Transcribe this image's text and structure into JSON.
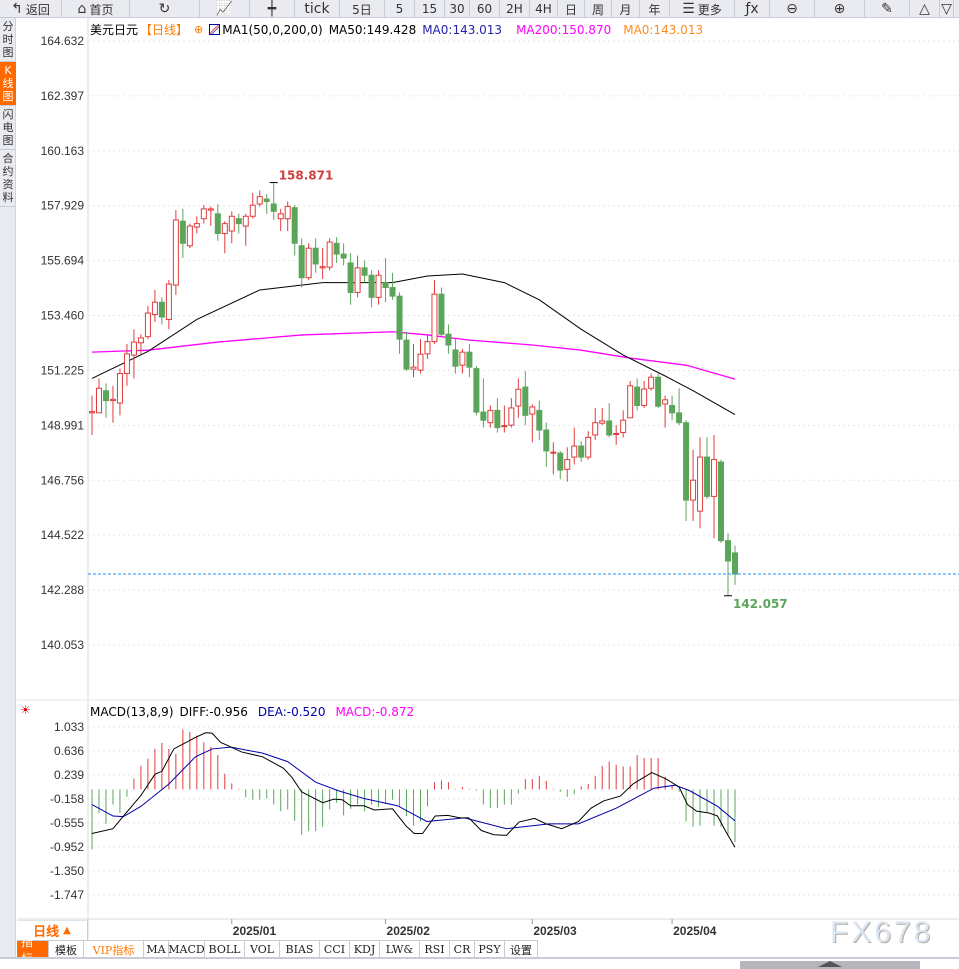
{
  "toolbar": [
    {
      "label": "返回",
      "icon": "back-arrow-icon",
      "w": 62
    },
    {
      "label": "首页",
      "icon": "home-icon",
      "w": 68
    },
    {
      "label": "",
      "icon": "refresh-icon",
      "w": 70
    },
    {
      "label": "",
      "icon": "line-chart-icon",
      "w": 50
    },
    {
      "label": "",
      "icon": "candlestick-icon",
      "w": 45
    },
    {
      "label": "tick",
      "icon": "",
      "w": 45,
      "big": true
    },
    {
      "label": "5日",
      "icon": "",
      "w": 45
    },
    {
      "label": "5",
      "icon": "",
      "w": 30
    },
    {
      "label": "15",
      "icon": "",
      "w": 30
    },
    {
      "label": "30",
      "icon": "",
      "w": 25
    },
    {
      "label": "60",
      "icon": "",
      "w": 30
    },
    {
      "label": "2H",
      "icon": "",
      "w": 30
    },
    {
      "label": "4H",
      "icon": "",
      "w": 28
    },
    {
      "label": "日",
      "icon": "",
      "w": 27
    },
    {
      "label": "周",
      "icon": "",
      "w": 27
    },
    {
      "label": "月",
      "icon": "",
      "w": 28
    },
    {
      "label": "年",
      "icon": "",
      "w": 30
    },
    {
      "label": "更多",
      "icon": "menu-icon",
      "w": 65
    },
    {
      "label": "",
      "icon": "fx-icon",
      "w": 35
    },
    {
      "label": "",
      "icon": "zoom-out-icon",
      "w": 45
    },
    {
      "label": "",
      "icon": "zoom-in-icon",
      "w": 50
    },
    {
      "label": "",
      "icon": "pen-icon",
      "w": 45
    },
    {
      "label": "",
      "icon": "triangle-up-icon",
      "w": 30
    },
    {
      "label": "",
      "icon": "triangle-down-icon",
      "w": 14
    }
  ],
  "side_tabs": [
    {
      "label": "分时图",
      "active": false
    },
    {
      "label": "K线图",
      "active": true
    },
    {
      "label": "闪电图",
      "active": false
    },
    {
      "label": "合约资料",
      "active": false
    }
  ],
  "legend": {
    "symbol": "美元日元",
    "period": "【日线】",
    "ma_name": "MA1(50,0,200,0)",
    "ma50": "MA50:149.428",
    "ma0": "MA0:143.013",
    "ma200": "MA200:150.870",
    "ma0b": "MA0:143.013"
  },
  "macd_legend": {
    "name": "MACD(13,8,9)",
    "diff": "DIFF:-0.956",
    "dea": "DEA:-0.520",
    "macd": "MACD:-0.872"
  },
  "colors": {
    "up": "#e03c3c",
    "down": "#5ba55b",
    "ma50": "#000000",
    "ma200": "#ff00ff",
    "dea": "#0000aa",
    "accent": "#ff6a00",
    "price_line": "#1e90ff"
  },
  "chart_data": [
    {
      "type": "candlestick",
      "y_ticks": [
        "164.632",
        "162.397",
        "160.163",
        "157.929",
        "155.694",
        "153.460",
        "151.225",
        "148.991",
        "146.756",
        "144.522",
        "142.288",
        "140.053"
      ],
      "ylim": [
        140.053,
        164.632
      ],
      "high_label": "158.871",
      "low_label": "142.057",
      "last_price": 142.94,
      "x_ticks": [
        {
          "label": "2025/01",
          "index": 20
        },
        {
          "label": "2025/02",
          "index": 42
        },
        {
          "label": "2025/03",
          "index": 63
        },
        {
          "label": "2025/04",
          "index": 83
        }
      ],
      "ohlc": [
        [
          149.5,
          150.2,
          148.6,
          149.55
        ],
        [
          149.5,
          150.9,
          149.5,
          150.5
        ],
        [
          150.4,
          150.7,
          149.3,
          150.0
        ],
        [
          150.0,
          150.6,
          149.1,
          150.05
        ],
        [
          149.9,
          151.3,
          149.4,
          151.1
        ],
        [
          151.1,
          152.3,
          150.6,
          151.9
        ],
        [
          151.85,
          152.9,
          150.9,
          152.38
        ],
        [
          152.35,
          152.7,
          151.9,
          152.55
        ],
        [
          152.6,
          153.85,
          152.5,
          153.56
        ],
        [
          153.5,
          154.5,
          153.2,
          154.0
        ],
        [
          154.0,
          154.2,
          153.1,
          153.4
        ],
        [
          153.3,
          154.9,
          152.9,
          154.74
        ],
        [
          154.7,
          157.75,
          154.3,
          157.35
        ],
        [
          157.3,
          157.8,
          155.8,
          156.4
        ],
        [
          156.3,
          157.2,
          156.2,
          157.1
        ],
        [
          157.06,
          157.5,
          156.8,
          157.2
        ],
        [
          157.4,
          157.95,
          157.2,
          157.8
        ],
        [
          157.75,
          157.9,
          157.1,
          157.8
        ],
        [
          157.6,
          158.0,
          156.5,
          156.8
        ],
        [
          156.8,
          157.3,
          156.0,
          157.2
        ],
        [
          156.9,
          157.7,
          156.4,
          157.5
        ],
        [
          157.4,
          157.6,
          156.8,
          157.2
        ],
        [
          157.1,
          157.6,
          156.3,
          157.5
        ],
        [
          157.5,
          158.45,
          157.4,
          157.95
        ],
        [
          158.0,
          158.55,
          157.9,
          158.3
        ],
        [
          158.2,
          158.4,
          157.6,
          158.1
        ],
        [
          158.0,
          158.871,
          157.35,
          157.7
        ],
        [
          157.4,
          157.8,
          156.9,
          157.6
        ],
        [
          157.4,
          158.1,
          156.9,
          157.9
        ],
        [
          157.85,
          157.95,
          155.9,
          156.4
        ],
        [
          156.3,
          156.6,
          154.6,
          155.0
        ],
        [
          155.0,
          156.4,
          154.9,
          156.2
        ],
        [
          156.2,
          156.6,
          155.2,
          155.56
        ],
        [
          155.4,
          156.2,
          154.95,
          155.45
        ],
        [
          155.43,
          156.6,
          155.3,
          156.45
        ],
        [
          156.4,
          156.65,
          155.6,
          155.96
        ],
        [
          155.96,
          156.4,
          155.5,
          155.8
        ],
        [
          155.6,
          156.0,
          153.9,
          154.4
        ],
        [
          154.4,
          155.9,
          154.2,
          155.4
        ],
        [
          155.4,
          155.7,
          154.8,
          155.1
        ],
        [
          155.1,
          155.3,
          153.8,
          154.2
        ],
        [
          154.2,
          155.3,
          153.9,
          155.1
        ],
        [
          154.8,
          155.8,
          154.0,
          154.6
        ],
        [
          154.6,
          155.2,
          154.1,
          154.25
        ],
        [
          154.25,
          154.4,
          151.9,
          152.5
        ],
        [
          152.46,
          152.8,
          151.2,
          151.28
        ],
        [
          151.28,
          152.3,
          150.95,
          151.36
        ],
        [
          151.24,
          152.5,
          151.1,
          151.89
        ],
        [
          151.9,
          152.7,
          151.7,
          152.4
        ],
        [
          152.4,
          154.9,
          152.3,
          154.33
        ],
        [
          154.33,
          154.6,
          152.6,
          152.7
        ],
        [
          152.7,
          153.1,
          151.9,
          152.26
        ],
        [
          152.06,
          152.5,
          151.1,
          151.4
        ],
        [
          151.44,
          152.1,
          151.1,
          151.97
        ],
        [
          151.97,
          152.3,
          150.95,
          151.36
        ],
        [
          151.3,
          151.4,
          149.4,
          149.53
        ],
        [
          149.53,
          150.9,
          148.9,
          149.2
        ],
        [
          149.1,
          149.8,
          148.9,
          149.6
        ],
        [
          149.6,
          150.1,
          148.7,
          148.9
        ],
        [
          148.94,
          149.8,
          148.7,
          148.98
        ],
        [
          149.0,
          150.1,
          148.9,
          149.7
        ],
        [
          149.78,
          150.9,
          149.3,
          150.46
        ],
        [
          150.55,
          151.2,
          149.0,
          149.4
        ],
        [
          149.45,
          149.85,
          148.3,
          149.74
        ],
        [
          149.6,
          150.0,
          148.4,
          148.8
        ],
        [
          148.8,
          149.1,
          147.3,
          147.95
        ],
        [
          147.88,
          148.3,
          147.0,
          147.9
        ],
        [
          147.86,
          147.95,
          146.8,
          147.17
        ],
        [
          147.2,
          148.1,
          146.7,
          147.6
        ],
        [
          147.7,
          148.9,
          147.4,
          148.15
        ],
        [
          148.15,
          148.35,
          147.5,
          147.7
        ],
        [
          147.7,
          148.75,
          147.6,
          148.5
        ],
        [
          148.6,
          149.7,
          148.4,
          149.1
        ],
        [
          149.08,
          149.7,
          149.0,
          149.17
        ],
        [
          149.17,
          149.9,
          148.5,
          148.6
        ],
        [
          148.64,
          149.0,
          148.2,
          148.66
        ],
        [
          148.7,
          149.6,
          148.5,
          149.2
        ],
        [
          149.3,
          150.8,
          149.3,
          150.6
        ],
        [
          150.55,
          150.9,
          149.6,
          149.8
        ],
        [
          149.8,
          150.8,
          149.7,
          150.47
        ],
        [
          150.5,
          151.1,
          150.4,
          150.95
        ],
        [
          150.95,
          151.1,
          149.7,
          149.77
        ],
        [
          149.86,
          150.2,
          148.9,
          150.03
        ],
        [
          149.8,
          150.2,
          149.2,
          149.5
        ],
        [
          149.5,
          150.5,
          149.0,
          149.1
        ],
        [
          149.1,
          149.2,
          145.1,
          145.95
        ],
        [
          145.95,
          148.0,
          145.1,
          146.76
        ],
        [
          145.5,
          148.5,
          144.8,
          147.7
        ],
        [
          147.7,
          148.5,
          146.0,
          146.1
        ],
        [
          146.1,
          148.6,
          144.4,
          147.6
        ],
        [
          147.5,
          147.6,
          144.2,
          144.3
        ],
        [
          144.3,
          144.6,
          142.057,
          143.47
        ],
        [
          143.8,
          144.1,
          142.5,
          142.94
        ]
      ],
      "ma50": [
        [
          0,
          150.9
        ],
        [
          8,
          152.0
        ],
        [
          15,
          153.3
        ],
        [
          24,
          154.5
        ],
        [
          33,
          154.8
        ],
        [
          43,
          154.8
        ],
        [
          48,
          155.07
        ],
        [
          53,
          155.15
        ],
        [
          59,
          154.8
        ],
        [
          64,
          154.1
        ],
        [
          70,
          152.9
        ],
        [
          76,
          151.85
        ],
        [
          82,
          151.0
        ],
        [
          86,
          150.4
        ],
        [
          92,
          149.43
        ]
      ],
      "ma200": [
        [
          0,
          151.97
        ],
        [
          8,
          152.05
        ],
        [
          18,
          152.38
        ],
        [
          30,
          152.67
        ],
        [
          43,
          152.8
        ],
        [
          48,
          152.67
        ],
        [
          54,
          152.46
        ],
        [
          63,
          152.26
        ],
        [
          70,
          152.05
        ],
        [
          77,
          151.73
        ],
        [
          85,
          151.44
        ],
        [
          92,
          150.87
        ]
      ]
    },
    {
      "type": "macd",
      "y_ticks": [
        "1.033",
        "0.636",
        "0.239",
        "-0.158",
        "-0.555",
        "-0.952",
        "-1.350",
        "-1.747"
      ],
      "ylim": [
        -1.747,
        1.033
      ],
      "hist": [
        -0.99,
        -0.39,
        -0.57,
        -0.25,
        -0.39,
        -0.12,
        0.18,
        0.39,
        0.51,
        0.67,
        0.77,
        0.67,
        0.59,
        0.99,
        0.95,
        0.89,
        0.78,
        0.7,
        0.57,
        0.26,
        0.1,
        0.01,
        -0.13,
        -0.17,
        -0.17,
        -0.15,
        -0.25,
        -0.36,
        -0.33,
        -0.52,
        -0.75,
        -0.69,
        -0.69,
        -0.62,
        -0.33,
        -0.22,
        -0.43,
        -0.32,
        -0.25,
        -0.36,
        -0.25,
        -0.29,
        -0.24,
        -0.17,
        -0.28,
        -0.44,
        -0.6,
        -0.53,
        -0.28,
        0.12,
        0.15,
        0.12,
        0.01,
        0.04,
        0.01,
        -0.02,
        -0.25,
        -0.31,
        -0.31,
        -0.25,
        -0.25,
        -0.07,
        0.17,
        0.17,
        0.22,
        0.14,
        0.01,
        -0.04,
        -0.12,
        -0.08,
        0.05,
        0.09,
        0.22,
        0.39,
        0.46,
        0.41,
        0.38,
        0.38,
        0.57,
        0.52,
        0.52,
        0.52,
        0.21,
        0.06,
        -0.04,
        -0.53,
        -0.62,
        -0.6,
        -0.39,
        -0.6,
        -0.62,
        -0.75,
        -0.872
      ],
      "diff": [
        [
          0,
          -0.73
        ],
        [
          3,
          -0.65
        ],
        [
          4.5,
          -0.44
        ],
        [
          7,
          -0.1
        ],
        [
          9,
          0.25
        ],
        [
          10,
          0.3
        ],
        [
          11.7,
          0.67
        ],
        [
          14.8,
          0.86
        ],
        [
          16.3,
          0.94
        ],
        [
          17.2,
          0.93
        ],
        [
          18.4,
          0.78
        ],
        [
          21.4,
          0.62
        ],
        [
          24.4,
          0.54
        ],
        [
          27.4,
          0.35
        ],
        [
          28.6,
          0.2
        ],
        [
          30,
          -0.04
        ],
        [
          33,
          -0.22
        ],
        [
          34.6,
          -0.16
        ],
        [
          35.8,
          -0.17
        ],
        [
          37,
          -0.27
        ],
        [
          38.9,
          -0.27
        ],
        [
          40.4,
          -0.34
        ],
        [
          43,
          -0.32
        ],
        [
          44.9,
          -0.6
        ],
        [
          46.1,
          -0.73
        ],
        [
          47.3,
          -0.73
        ],
        [
          49.1,
          -0.44
        ],
        [
          50.9,
          -0.43
        ],
        [
          52.7,
          -0.47
        ],
        [
          53.9,
          -0.47
        ],
        [
          55.7,
          -0.68
        ],
        [
          57.5,
          -0.75
        ],
        [
          59.3,
          -0.76
        ],
        [
          61.1,
          -0.54
        ],
        [
          63.3,
          -0.48
        ],
        [
          65,
          -0.57
        ],
        [
          67.2,
          -0.65
        ],
        [
          69.6,
          -0.53
        ],
        [
          71.4,
          -0.31
        ],
        [
          73.2,
          -0.19
        ],
        [
          75.6,
          -0.11
        ],
        [
          77.4,
          0.09
        ],
        [
          80.1,
          0.28
        ],
        [
          82.2,
          0.17
        ],
        [
          84,
          0.04
        ],
        [
          85.2,
          -0.25
        ],
        [
          86.5,
          -0.36
        ],
        [
          88.3,
          -0.39
        ],
        [
          89.5,
          -0.44
        ],
        [
          90.7,
          -0.7
        ],
        [
          92,
          -0.956
        ]
      ],
      "dea": [
        [
          0,
          -0.25
        ],
        [
          3,
          -0.44
        ],
        [
          4.5,
          -0.45
        ],
        [
          7,
          -0.28
        ],
        [
          11,
          0.09
        ],
        [
          14.8,
          0.54
        ],
        [
          17.2,
          0.67
        ],
        [
          19.9,
          0.7
        ],
        [
          24.4,
          0.6
        ],
        [
          28,
          0.46
        ],
        [
          32,
          0.12
        ],
        [
          35.2,
          -0.02
        ],
        [
          38.9,
          -0.15
        ],
        [
          43.7,
          -0.27
        ],
        [
          47.9,
          -0.53
        ],
        [
          53.3,
          -0.47
        ],
        [
          59.3,
          -0.65
        ],
        [
          65.4,
          -0.57
        ],
        [
          69.6,
          -0.57
        ],
        [
          75,
          -0.31
        ],
        [
          80.4,
          0.02
        ],
        [
          83.4,
          0.07
        ],
        [
          85.5,
          -0.02
        ],
        [
          89.5,
          -0.28
        ],
        [
          92,
          -0.52
        ]
      ]
    }
  ],
  "bottom": {
    "period_label": "日线",
    "tabs": [
      {
        "label": "指标",
        "active": true
      },
      {
        "label": "模板"
      },
      {
        "label": "VIP指标",
        "vip": true
      },
      {
        "label": "MA"
      },
      {
        "label": "MACD"
      },
      {
        "label": "BOLL"
      },
      {
        "label": "VOL"
      },
      {
        "label": "BIAS"
      },
      {
        "label": "CCI"
      },
      {
        "label": "KDJ"
      },
      {
        "label": "LW&"
      },
      {
        "label": "RSI"
      },
      {
        "label": "CR"
      },
      {
        "label": "PSY"
      },
      {
        "label": "设置"
      }
    ],
    "watermark": "FX678"
  }
}
